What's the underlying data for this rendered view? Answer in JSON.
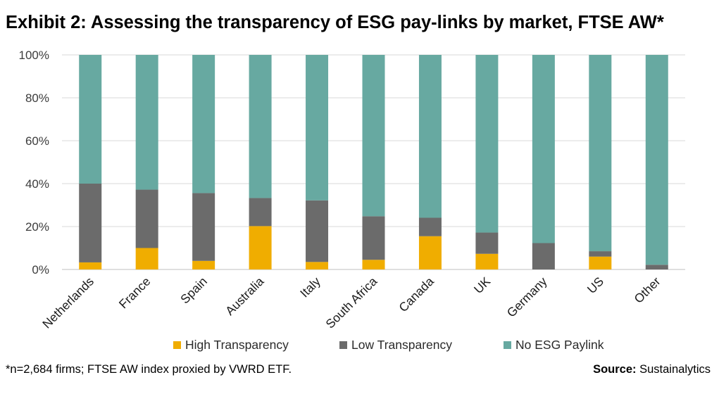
{
  "title": "Exhibit 2: Assessing the transparency of ESG pay-links by market, FTSE AW*",
  "footnote": "*n=2,684 firms; FTSE AW index proxied by VWRD ETF.",
  "source_label": "Source:",
  "source_value": "Sustainalytics",
  "colors": {
    "high": "#f0ad00",
    "low": "#6b6b6b",
    "none": "#67a9a1",
    "grid": "#d9d9d9",
    "axis": "#bfbfbf"
  },
  "chart_data": {
    "type": "bar",
    "stacked": true,
    "title": "Exhibit 2: Assessing the transparency of ESG pay-links by market, FTSE AW*",
    "xlabel": "",
    "ylabel": "",
    "ylim": [
      0,
      100
    ],
    "yticks": [
      "0%",
      "20%",
      "40%",
      "60%",
      "80%",
      "100%"
    ],
    "grid": true,
    "legend_position": "bottom",
    "categories": [
      "Netherlands",
      "France",
      "Spain",
      "Australia",
      "Italy",
      "South Africa",
      "Canada",
      "UK",
      "Germany",
      "US",
      "Other"
    ],
    "series": [
      {
        "name": "High Transparency",
        "color": "#f0ad00",
        "values": [
          3.3,
          10,
          4,
          20.2,
          3.5,
          4.5,
          15.5,
          7.3,
          0,
          6,
          0
        ]
      },
      {
        "name": "Low Transparency",
        "color": "#6b6b6b",
        "values": [
          36.7,
          27.2,
          31.6,
          13.1,
          28.7,
          20.3,
          8.6,
          9.9,
          12.3,
          2.5,
          2.2
        ]
      },
      {
        "name": "No ESG Paylink",
        "color": "#67a9a1",
        "values": [
          60,
          62.8,
          64.4,
          66.7,
          67.8,
          75.2,
          75.9,
          82.8,
          87.7,
          91.5,
          97.8
        ]
      }
    ]
  }
}
